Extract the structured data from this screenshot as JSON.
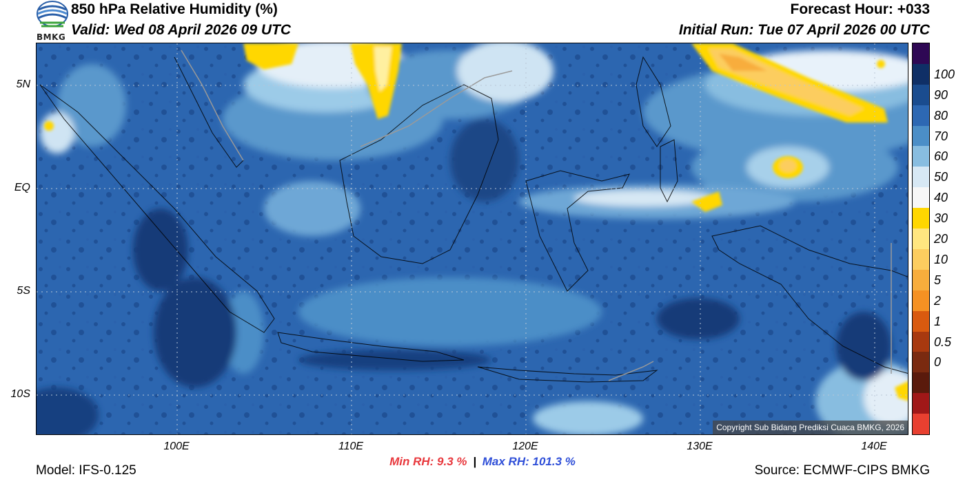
{
  "header": {
    "title": "850 hPa Relative Humidity (%)",
    "valid": "Valid: Wed 08 April 2026 09 UTC",
    "forecast_hour": "Forecast Hour: +033",
    "initial_run": "Initial Run: Tue 07 April 2026 00 UTC",
    "logo_text": "BMKG"
  },
  "map": {
    "lat_labels": [
      "5N",
      "EQ",
      "5S",
      "10S"
    ],
    "lon_labels": [
      "100E",
      "110E",
      "120E",
      "130E",
      "140E"
    ],
    "copyright": "Copyright Sub Bidang Prediksi Cuaca BMKG, 2026"
  },
  "colorbar": {
    "labels": [
      "100",
      "90",
      "80",
      "70",
      "60",
      "50",
      "40",
      "30",
      "20",
      "10",
      "5",
      "2",
      "1",
      "0.5",
      "0"
    ],
    "colors": [
      "#2e0854",
      "#0f2f66",
      "#1a4c8f",
      "#2d68b3",
      "#4b8ec7",
      "#88bde0",
      "#d7e8f4",
      "#f7f7f7",
      "#ffd700",
      "#ffe680",
      "#fccd5f",
      "#f8ad3c",
      "#f59123",
      "#d95a0f",
      "#a8390f",
      "#7a2a10",
      "#5a1a0c",
      "#a01818",
      "#e84030"
    ]
  },
  "stats": {
    "min_label": "Min RH:",
    "min_value": "9.3 %",
    "separator": "|",
    "max_label": "Max RH:",
    "max_value": "101.3 %"
  },
  "footer": {
    "model": "Model: IFS-0.125",
    "source": "Source: ECMWF-CIPS BMKG"
  }
}
